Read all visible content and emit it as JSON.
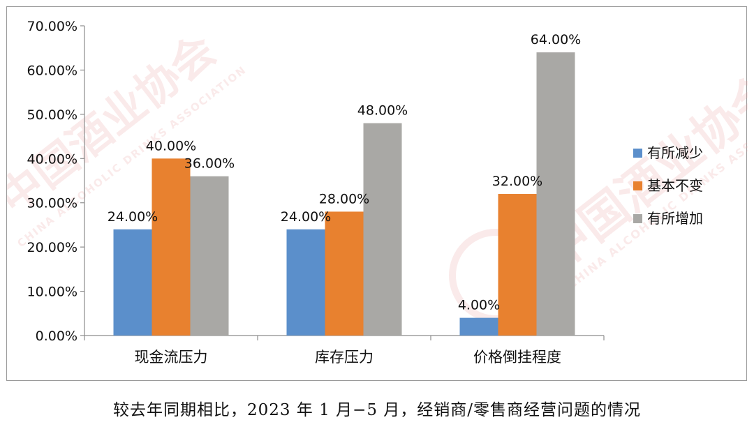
{
  "chart_data": {
    "type": "bar",
    "categories": [
      "现金流压力",
      "库存压力",
      "价格倒挂程度"
    ],
    "series": [
      {
        "name": "有所减少",
        "values": [
          24.0,
          24.0,
          4.0
        ],
        "color": "#5b8fcb"
      },
      {
        "name": "基本不变",
        "values": [
          40.0,
          28.0,
          32.0
        ],
        "color": "#e8812f"
      },
      {
        "name": "有所增加",
        "values": [
          36.0,
          48.0,
          64.0
        ],
        "color": "#a9a8a5"
      }
    ],
    "ylim": [
      0,
      70
    ],
    "yticks": [
      0,
      10,
      20,
      30,
      40,
      50,
      60,
      70
    ],
    "ytick_labels": [
      "0.00%",
      "10.00%",
      "20.00%",
      "30.00%",
      "40.00%",
      "50.00%",
      "60.00%",
      "70.00%"
    ],
    "data_labels": [
      [
        "24.00%",
        "24.00%",
        "4.00%"
      ],
      [
        "40.00%",
        "28.00%",
        "32.00%"
      ],
      [
        "36.00%",
        "48.00%",
        "64.00%"
      ]
    ],
    "legend_position": "right",
    "grid": false,
    "title": "",
    "xlabel": "",
    "ylabel": ""
  },
  "watermark": {
    "text_cn": "中国酒业协会",
    "text_en": "CHINA ALCOHOLIC DRINKS ASSOCIATION",
    "color": "#e6a0a0"
  },
  "caption": "较去年同期相比，2023 年 1 月−5 月，经销商/零售商经营问题的情况"
}
